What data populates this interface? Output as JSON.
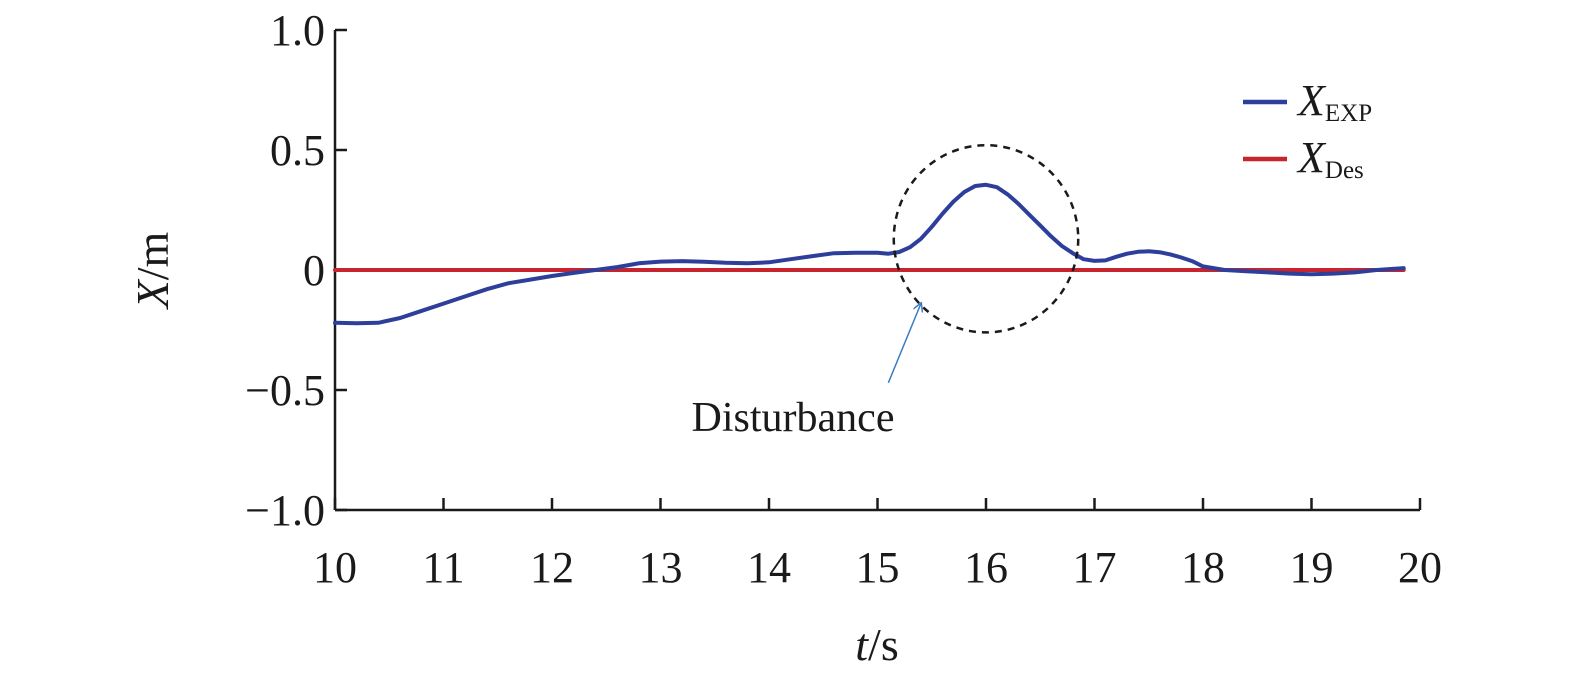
{
  "chart_data": {
    "type": "line",
    "title": "",
    "xlabel": {
      "var": "t",
      "unit": "/s"
    },
    "ylabel": {
      "var": "X",
      "unit": "/m"
    },
    "xlim": [
      10,
      20
    ],
    "ylim": [
      -1.0,
      1.0
    ],
    "x_ticks": [
      10,
      11,
      12,
      13,
      14,
      15,
      16,
      17,
      18,
      19,
      20
    ],
    "x_tick_labels": [
      "10",
      "11",
      "12",
      "13",
      "14",
      "15",
      "16",
      "17",
      "18",
      "19",
      "20"
    ],
    "y_ticks": [
      1.0,
      0.5,
      0,
      -0.5,
      -1.0
    ],
    "y_tick_labels": [
      "1.0",
      "0.5",
      "0",
      "−0.5",
      "−1.0"
    ],
    "grid": false,
    "legend_position": "top-right",
    "series": [
      {
        "name": {
          "main": "X",
          "sub": "EXP"
        },
        "color": "#2e3f9b",
        "x": [
          10.0,
          10.2,
          10.4,
          10.6,
          10.8,
          11.0,
          11.2,
          11.4,
          11.6,
          11.8,
          12.0,
          12.2,
          12.4,
          12.6,
          12.8,
          13.0,
          13.2,
          13.4,
          13.6,
          13.8,
          14.0,
          14.2,
          14.4,
          14.6,
          14.8,
          15.0,
          15.1,
          15.2,
          15.3,
          15.4,
          15.5,
          15.6,
          15.7,
          15.8,
          15.9,
          16.0,
          16.1,
          16.2,
          16.3,
          16.4,
          16.5,
          16.6,
          16.7,
          16.8,
          16.9,
          17.0,
          17.1,
          17.2,
          17.3,
          17.4,
          17.5,
          17.6,
          17.7,
          17.8,
          17.9,
          18.0,
          18.2,
          18.4,
          18.6,
          18.8,
          19.0,
          19.2,
          19.4,
          19.6,
          19.85
        ],
        "y": [
          -0.22,
          -0.222,
          -0.22,
          -0.2,
          -0.17,
          -0.14,
          -0.11,
          -0.08,
          -0.055,
          -0.04,
          -0.025,
          -0.012,
          0.0,
          0.012,
          0.028,
          0.035,
          0.037,
          0.034,
          0.03,
          0.028,
          0.032,
          0.045,
          0.058,
          0.07,
          0.072,
          0.072,
          0.068,
          0.075,
          0.095,
          0.13,
          0.18,
          0.235,
          0.285,
          0.325,
          0.35,
          0.355,
          0.345,
          0.315,
          0.275,
          0.23,
          0.185,
          0.14,
          0.1,
          0.07,
          0.045,
          0.038,
          0.04,
          0.055,
          0.068,
          0.076,
          0.078,
          0.074,
          0.065,
          0.052,
          0.037,
          0.015,
          0.0,
          -0.005,
          -0.01,
          -0.015,
          -0.018,
          -0.015,
          -0.01,
          0.0,
          0.008
        ]
      },
      {
        "name": {
          "main": "X",
          "sub": "Des"
        },
        "color": "#c8242e",
        "x": [
          10.0,
          19.85
        ],
        "y": [
          0.0,
          0.0
        ]
      }
    ],
    "annotations": [
      {
        "type": "ellipse",
        "cx": 16.0,
        "cy": 0.13,
        "rx": 0.85,
        "ry": 0.39,
        "style": "dashed"
      },
      {
        "type": "arrow-text",
        "text": "Disturbance",
        "from": [
          15.1,
          -0.47
        ],
        "to": [
          15.4,
          -0.14
        ],
        "color": "#3a7cc2"
      }
    ]
  }
}
